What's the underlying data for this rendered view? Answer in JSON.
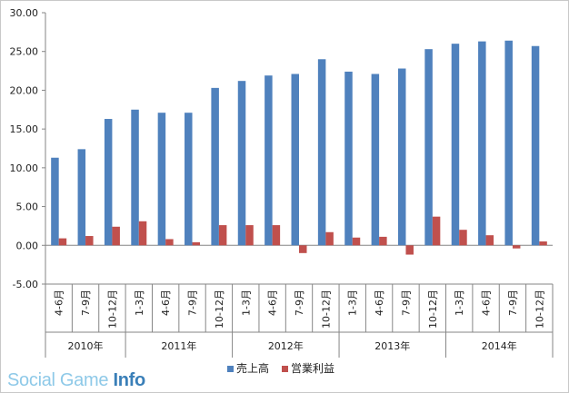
{
  "chart_data": {
    "type": "bar",
    "categories": [
      "4-6月",
      "7-9月",
      "10-12月",
      "1-3月",
      "4-6月",
      "7-9月",
      "10-12月",
      "1-3月",
      "4-6月",
      "7-9月",
      "10-12月",
      "1-3月",
      "4-6月",
      "7-9月",
      "10-12月",
      "1-3月",
      "4-6月",
      "7-9月",
      "10-12月"
    ],
    "year_groups": [
      {
        "label": "2010年",
        "count": 3
      },
      {
        "label": "2011年",
        "count": 4
      },
      {
        "label": "2012年",
        "count": 4
      },
      {
        "label": "2013年",
        "count": 4
      },
      {
        "label": "2014年",
        "count": 4
      }
    ],
    "series": [
      {
        "name": "売上高",
        "color": "#4f81bd",
        "values": [
          11.3,
          12.4,
          16.3,
          17.5,
          17.1,
          17.1,
          20.3,
          21.2,
          21.9,
          22.1,
          24.0,
          22.4,
          22.1,
          22.8,
          25.3,
          26.0,
          26.3,
          26.4,
          25.7
        ]
      },
      {
        "name": "営業利益",
        "color": "#c0504d",
        "values": [
          0.9,
          1.2,
          2.4,
          3.1,
          0.8,
          0.4,
          2.6,
          2.6,
          2.6,
          -1.0,
          1.7,
          1.0,
          1.1,
          -1.2,
          3.7,
          2.0,
          1.3,
          -0.4,
          0.5
        ]
      }
    ],
    "ylim": [
      -5,
      30
    ],
    "yticks": [
      "-5.00",
      "0.00",
      "5.00",
      "10.00",
      "15.00",
      "20.00",
      "25.00",
      "30.00"
    ],
    "grid": false,
    "legend_position": "bottom"
  },
  "watermark": {
    "part1": "Social Game ",
    "part2": "Info"
  }
}
